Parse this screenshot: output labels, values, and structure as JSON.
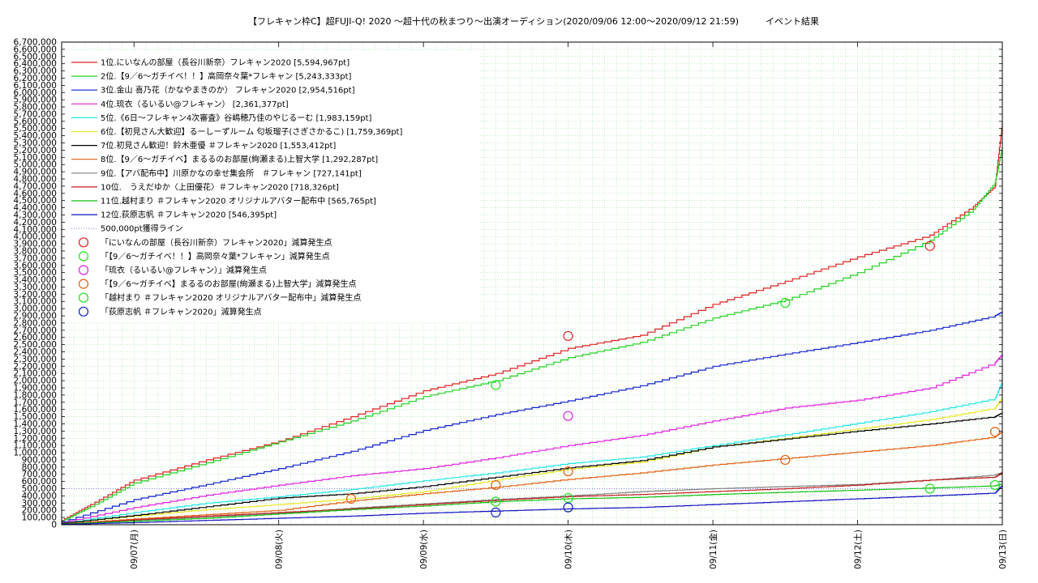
{
  "chart_data": {
    "type": "line",
    "title": "【フレキャン枠C】超FUJI-Q! 2020 〜超十代の秋まつり〜出演オーディション(2020/09/06 12:00〜2020/09/12 21:59)　　　イベント結果",
    "xlabel": "",
    "ylabel": "",
    "ylim": [
      0,
      6700000
    ],
    "ytick_step": 100000,
    "xlim_days": [
      -0.5,
      6.0
    ],
    "x_ticks": [
      "09/07(月)",
      "09/08(火)",
      "09/09(水)",
      "09/10(木)",
      "09/11(金)",
      "09/12(土)",
      "09/13(日)"
    ],
    "grid": true,
    "legend_position": "top-left",
    "series": [
      {
        "name": "1位.にいなんの部屋（長谷川新奈）フレキャン2020 [5,594,967pt]",
        "color": "#e02020",
        "x": [
          -0.5,
          -0.3,
          0,
          0.5,
          1,
          1.5,
          2,
          2.5,
          3,
          3.5,
          4,
          4.5,
          5,
          5.5,
          5.8,
          5.95,
          6.0
        ],
        "y": [
          60000,
          280000,
          620000,
          900000,
          1160000,
          1500000,
          1860000,
          2100000,
          2450000,
          2630000,
          3060000,
          3380000,
          3720000,
          4020000,
          4420000,
          4700000,
          5594967
        ]
      },
      {
        "name": "2位.【9／6〜ガチイベ！！】高岡奈々葉*フレキャン [5,243,333pt]",
        "color": "#20d020",
        "x": [
          -0.5,
          -0.3,
          0,
          0.5,
          1,
          1.5,
          2,
          2.5,
          3,
          3.5,
          4,
          4.5,
          5,
          5.5,
          5.8,
          5.95,
          6.0
        ],
        "y": [
          50000,
          250000,
          580000,
          860000,
          1150000,
          1440000,
          1780000,
          2000000,
          2320000,
          2530000,
          2870000,
          3120000,
          3500000,
          3950000,
          4380000,
          4750000,
          5243333
        ]
      },
      {
        "name": "3位.金山 喜乃花（かなやまきのか） フレキャン2020 [2,954,516pt]",
        "color": "#1020d0",
        "x": [
          -0.5,
          0,
          0.5,
          1,
          1.5,
          2,
          2.5,
          3,
          3.5,
          4,
          4.5,
          5,
          5.5,
          5.95,
          6.0
        ],
        "y": [
          40000,
          350000,
          560000,
          780000,
          1020000,
          1310000,
          1530000,
          1720000,
          1930000,
          2200000,
          2370000,
          2530000,
          2700000,
          2900000,
          2954516
        ]
      },
      {
        "name": "4位.琉衣（るいるい@フレキャン） [2,361,377pt]",
        "color": "#e020e0",
        "x": [
          -0.5,
          0,
          0.5,
          1,
          1.5,
          2,
          2.5,
          3,
          3.5,
          4,
          4.5,
          5,
          5.5,
          5.95,
          6.0
        ],
        "y": [
          30000,
          240000,
          410000,
          550000,
          680000,
          780000,
          930000,
          1100000,
          1240000,
          1440000,
          1620000,
          1730000,
          1900000,
          2250000,
          2361377
        ]
      },
      {
        "name": "5位.《6日〜フレキャン4次審査》谷嶋穂乃佳のやじるーむ [1,983,159pt]",
        "color": "#20e8e8",
        "x": [
          -0.5,
          0,
          0.5,
          1,
          1.5,
          2,
          2.5,
          3,
          3.5,
          4,
          4.5,
          5,
          5.5,
          5.95,
          6.0
        ],
        "y": [
          20000,
          170000,
          300000,
          390000,
          490000,
          610000,
          720000,
          850000,
          940000,
          1100000,
          1250000,
          1410000,
          1570000,
          1750000,
          1983159
        ]
      },
      {
        "name": "6位.【初見さん大歓迎】るーしーずルーム 匂坂瑠子(さぎさかるこ) [1,759,369pt]",
        "color": "#e8e820",
        "x": [
          -0.5,
          0,
          0.5,
          1,
          1.5,
          2,
          2.5,
          3,
          3.5,
          4,
          4.5,
          5,
          5.5,
          5.95,
          6.0
        ],
        "y": [
          20000,
          120000,
          210000,
          280000,
          360000,
          460000,
          620000,
          770000,
          870000,
          1080000,
          1200000,
          1330000,
          1460000,
          1620000,
          1759369
        ]
      },
      {
        "name": "7位.初見さん歓迎！鈴木亜優 ＃フレキャン2020 [1,553,412pt]",
        "color": "#000000",
        "x": [
          -0.5,
          0,
          0.5,
          1,
          1.5,
          2,
          2.5,
          3,
          3.5,
          4,
          4.5,
          5,
          5.5,
          5.95,
          6.0
        ],
        "y": [
          20000,
          130000,
          250000,
          370000,
          430000,
          530000,
          660000,
          790000,
          890000,
          1080000,
          1190000,
          1300000,
          1400000,
          1500000,
          1553412
        ]
      },
      {
        "name": "8位.【9／6〜ガチイベ】まるるのお部屋(絢瀬まる)上智大学 [1,292,287pt]",
        "color": "#e06010",
        "x": [
          -0.5,
          0,
          0.5,
          1,
          1.5,
          2,
          2.5,
          3,
          3.5,
          4,
          4.5,
          5,
          5.5,
          5.95,
          6.0
        ],
        "y": [
          10000,
          80000,
          140000,
          200000,
          330000,
          430000,
          520000,
          630000,
          720000,
          830000,
          920000,
          1010000,
          1100000,
          1220000,
          1292287
        ]
      },
      {
        "name": "9位.【アバ配布中】川原かなの幸せ集会所　＃フレキャン [727,141pt]",
        "color": "#808080",
        "x": [
          -0.5,
          0,
          0.5,
          1,
          1.5,
          2,
          2.5,
          3,
          3.5,
          4,
          4.5,
          5,
          5.5,
          5.95,
          6.0
        ],
        "y": [
          10000,
          60000,
          110000,
          160000,
          230000,
          290000,
          350000,
          400000,
          460000,
          500000,
          530000,
          560000,
          620000,
          690000,
          727141
        ]
      },
      {
        "name": "10位.　うえだゆか〈上田優花〉＃フレキャン2020 [718,326pt]",
        "color": "#c02020",
        "x": [
          -0.5,
          0,
          0.5,
          1,
          1.5,
          2,
          2.5,
          3,
          3.5,
          4,
          4.5,
          5,
          5.5,
          5.95,
          6.0
        ],
        "y": [
          10000,
          70000,
          120000,
          170000,
          220000,
          280000,
          340000,
          390000,
          420000,
          460000,
          500000,
          550000,
          620000,
          660000,
          718326
        ]
      },
      {
        "name": "11位.越村まり ＃フレキャン2020 オリジナルアバター配布中 [565,765pt]",
        "color": "#10c010",
        "x": [
          -0.5,
          0,
          0.5,
          1,
          1.5,
          2,
          2.5,
          3,
          3.5,
          4,
          4.5,
          5,
          5.5,
          5.95,
          6.0
        ],
        "y": [
          10000,
          50000,
          90000,
          150000,
          210000,
          260000,
          320000,
          360000,
          380000,
          420000,
          450000,
          480000,
          510000,
          540000,
          565765
        ]
      },
      {
        "name": "12位.荻原志帆 ＃フレキャン2020 [546,395pt]",
        "color": "#1010c0",
        "x": [
          -0.5,
          0,
          0.5,
          1,
          1.5,
          2,
          2.5,
          3,
          3.5,
          4,
          4.5,
          5,
          5.5,
          5.95,
          6.0
        ],
        "y": [
          5000,
          30000,
          60000,
          90000,
          120000,
          160000,
          190000,
          220000,
          240000,
          280000,
          320000,
          360000,
          400000,
          440000,
          546395
        ]
      }
    ],
    "threshold": {
      "name": "500,000pt獲得ライン",
      "value": 500000,
      "color": "#8080ff"
    },
    "reduction_markers": [
      {
        "name": "「にいなんの部屋（長谷川新奈）フレキャン2020」減算発生点",
        "color": "#e02020",
        "points": [
          [
            3.0,
            2620000
          ],
          [
            5.5,
            3870000
          ]
        ]
      },
      {
        "name": "「【9／6〜ガチイベ！！】高岡奈々葉*フレキャン」減算発生点",
        "color": "#20e020",
        "points": [
          [
            2.5,
            1940000
          ],
          [
            4.5,
            3080000
          ]
        ]
      },
      {
        "name": "「琉衣（るいるい@フレキャン）」減算発生点",
        "color": "#e020e0",
        "points": [
          [
            3.0,
            1510000
          ]
        ]
      },
      {
        "name": "「【9／6〜ガチイベ】まるるのお部屋(絢瀬まる)上智大学」減算発生点",
        "color": "#e06010",
        "points": [
          [
            1.5,
            360000
          ],
          [
            2.5,
            550000
          ],
          [
            3.0,
            740000
          ],
          [
            4.5,
            900000
          ],
          [
            5.95,
            1290000
          ]
        ]
      },
      {
        "name": "「越村まり ＃フレキャン2020 オリジナルアバター配布中」減算発生点",
        "color": "#20e020",
        "points": [
          [
            2.5,
            320000
          ],
          [
            3.0,
            370000
          ],
          [
            5.5,
            500000
          ],
          [
            5.95,
            550000
          ]
        ]
      },
      {
        "name": "「荻原志帆 ＃フレキャン2020」減算発生点",
        "color": "#1020c0",
        "points": [
          [
            2.5,
            170000
          ],
          [
            3.0,
            240000
          ]
        ]
      }
    ]
  }
}
